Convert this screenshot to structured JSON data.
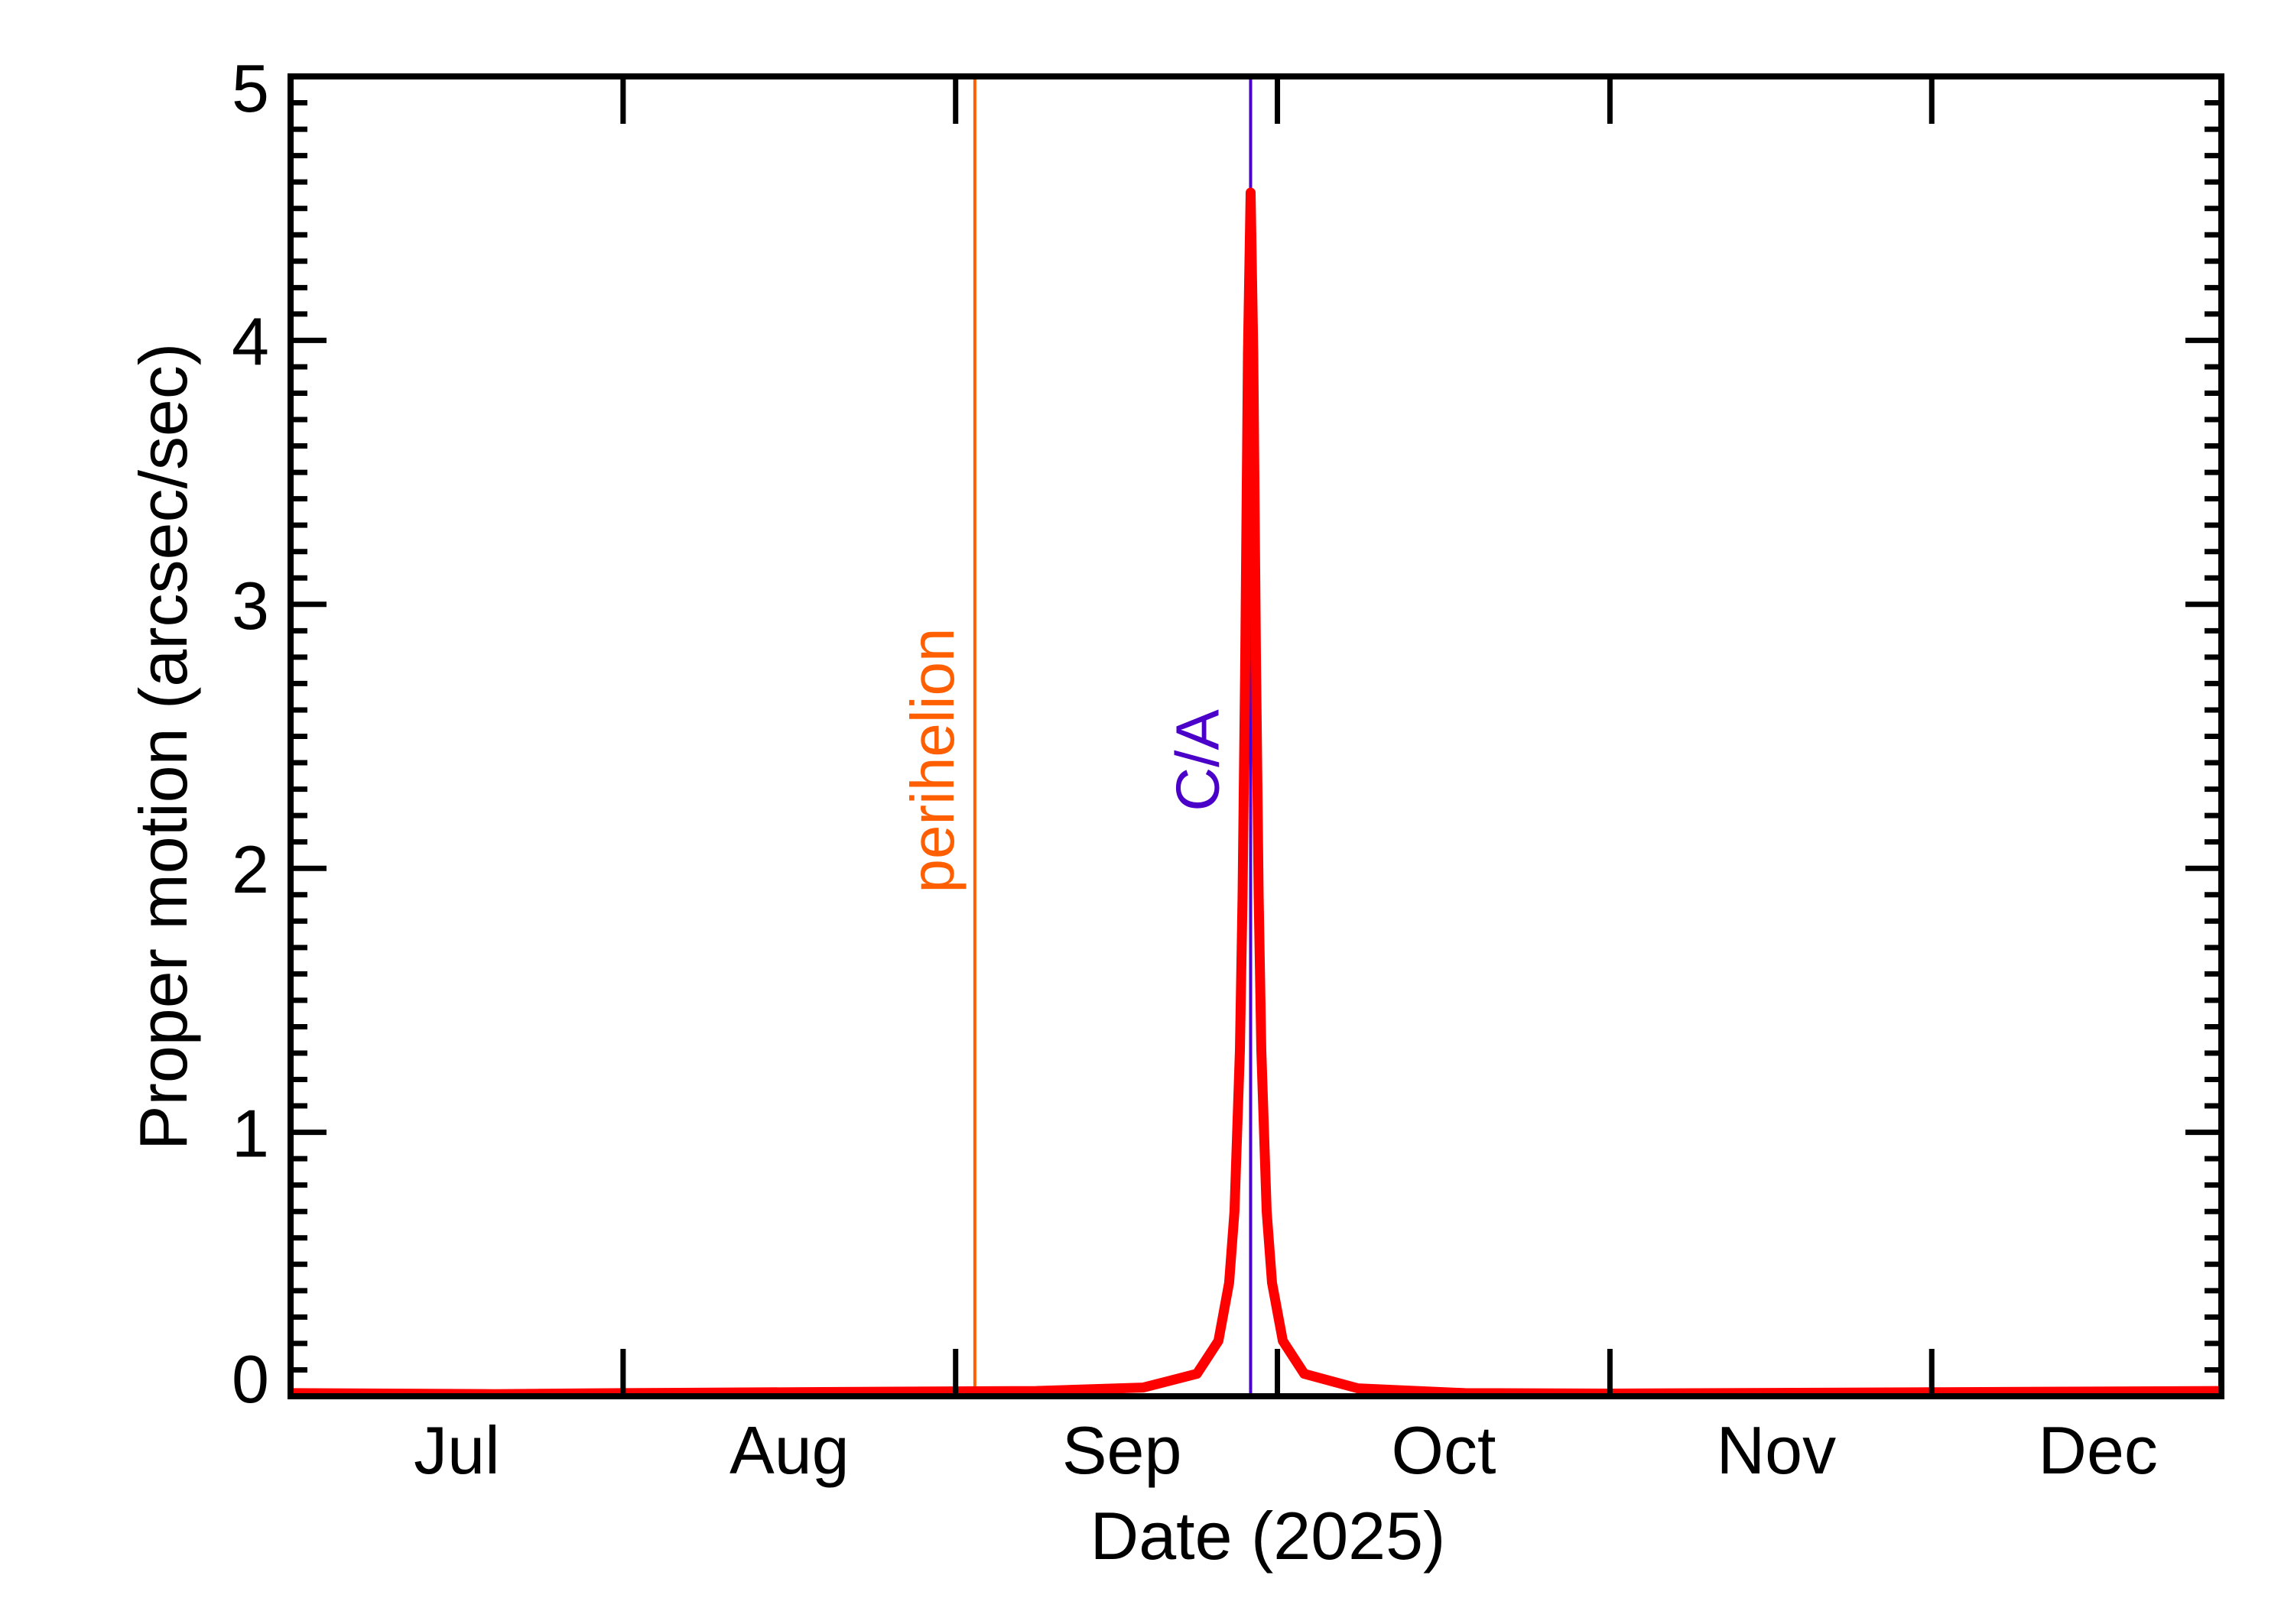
{
  "chart_data": {
    "type": "line",
    "xlabel": "Date (2025)",
    "ylabel": "Proper motion (arcsec/sec)",
    "xlim": [
      "2025-07-01",
      "2025-12-28"
    ],
    "ylim": [
      0,
      5
    ],
    "grid": false,
    "x_ticks": [
      {
        "date": "2025-07-01",
        "label": "Jul"
      },
      {
        "date": "2025-08-01",
        "label": "Aug"
      },
      {
        "date": "2025-09-01",
        "label": "Sep"
      },
      {
        "date": "2025-10-01",
        "label": "Oct"
      },
      {
        "date": "2025-11-01",
        "label": "Nov"
      },
      {
        "date": "2025-12-01",
        "label": "Dec"
      }
    ],
    "y_ticks": [
      {
        "value": 0,
        "label": "0"
      },
      {
        "value": 1,
        "label": "1"
      },
      {
        "value": 2,
        "label": "2"
      },
      {
        "value": 3,
        "label": "3"
      },
      {
        "value": 4,
        "label": "4"
      },
      {
        "value": 5,
        "label": "5"
      }
    ],
    "y_minor_step": 0.1,
    "markers": [
      {
        "label": "perihelion",
        "date": "2025-09-02T19:00",
        "color": "#ff5f00"
      },
      {
        "label": "C/A",
        "date": "2025-09-28T12:00",
        "color": "#4a00c8"
      }
    ],
    "series": [
      {
        "color": "#ff0000",
        "points": [
          [
            "2025-07-01T00:00",
            0.012
          ],
          [
            "2025-07-20T00:00",
            0.008
          ],
          [
            "2025-08-01T00:00",
            0.012
          ],
          [
            "2025-08-19T12:00",
            0.016
          ],
          [
            "2025-09-08T12:00",
            0.02
          ],
          [
            "2025-09-18T12:00",
            0.033
          ],
          [
            "2025-09-23T12:00",
            0.085
          ],
          [
            "2025-09-25T12:00",
            0.21
          ],
          [
            "2025-09-26T12:00",
            0.43
          ],
          [
            "2025-09-27T00:00",
            0.7
          ],
          [
            "2025-09-27T12:00",
            1.31
          ],
          [
            "2025-09-27T18:00",
            1.9
          ],
          [
            "2025-09-28T00:00",
            2.8
          ],
          [
            "2025-09-28T06:00",
            3.95
          ],
          [
            "2025-09-28T12:00",
            4.56
          ],
          [
            "2025-09-28T18:00",
            3.95
          ],
          [
            "2025-09-29T00:00",
            2.8
          ],
          [
            "2025-09-29T06:00",
            1.9
          ],
          [
            "2025-09-29T12:00",
            1.31
          ],
          [
            "2025-09-30T00:00",
            0.7
          ],
          [
            "2025-09-30T12:00",
            0.43
          ],
          [
            "2025-10-01T12:00",
            0.21
          ],
          [
            "2025-10-03T12:00",
            0.085
          ],
          [
            "2025-10-08T12:00",
            0.03
          ],
          [
            "2025-10-18T12:00",
            0.012
          ],
          [
            "2025-11-01T00:00",
            0.01
          ],
          [
            "2025-12-01T00:00",
            0.015
          ],
          [
            "2025-12-28T00:00",
            0.02
          ]
        ]
      }
    ]
  }
}
